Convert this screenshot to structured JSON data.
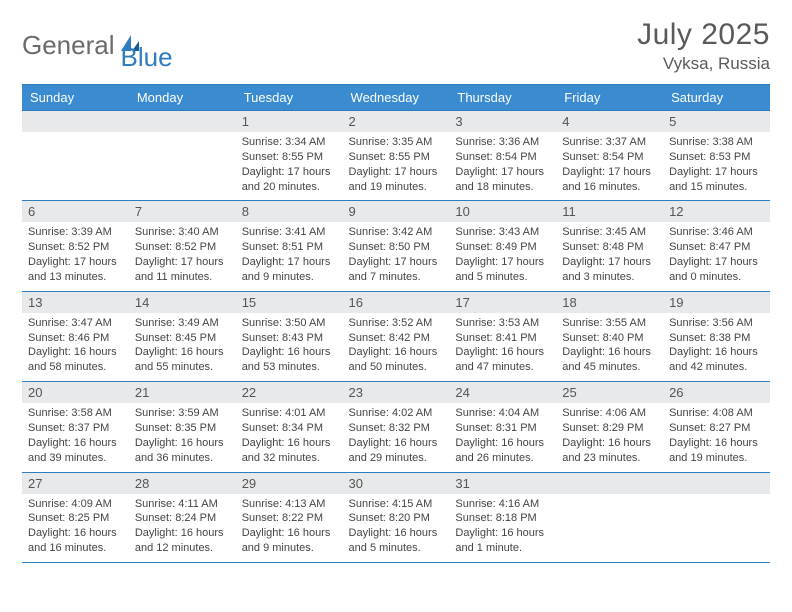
{
  "brand": {
    "part1": "General",
    "part2": "Blue"
  },
  "title": "July 2025",
  "location": "Vyksa, Russia",
  "colors": {
    "header_bg": "#3b8bd0",
    "border": "#2f7dc0",
    "daynum_bg": "#e8e9ea",
    "text": "#3a3a3a",
    "logo_gray": "#6b6b6b",
    "logo_blue": "#2f7dc0"
  },
  "weekdays": [
    "Sunday",
    "Monday",
    "Tuesday",
    "Wednesday",
    "Thursday",
    "Friday",
    "Saturday"
  ],
  "weeks": [
    [
      null,
      null,
      {
        "n": "1",
        "sr": "3:34 AM",
        "ss": "8:55 PM",
        "dl": "17 hours and 20 minutes."
      },
      {
        "n": "2",
        "sr": "3:35 AM",
        "ss": "8:55 PM",
        "dl": "17 hours and 19 minutes."
      },
      {
        "n": "3",
        "sr": "3:36 AM",
        "ss": "8:54 PM",
        "dl": "17 hours and 18 minutes."
      },
      {
        "n": "4",
        "sr": "3:37 AM",
        "ss": "8:54 PM",
        "dl": "17 hours and 16 minutes."
      },
      {
        "n": "5",
        "sr": "3:38 AM",
        "ss": "8:53 PM",
        "dl": "17 hours and 15 minutes."
      }
    ],
    [
      {
        "n": "6",
        "sr": "3:39 AM",
        "ss": "8:52 PM",
        "dl": "17 hours and 13 minutes."
      },
      {
        "n": "7",
        "sr": "3:40 AM",
        "ss": "8:52 PM",
        "dl": "17 hours and 11 minutes."
      },
      {
        "n": "8",
        "sr": "3:41 AM",
        "ss": "8:51 PM",
        "dl": "17 hours and 9 minutes."
      },
      {
        "n": "9",
        "sr": "3:42 AM",
        "ss": "8:50 PM",
        "dl": "17 hours and 7 minutes."
      },
      {
        "n": "10",
        "sr": "3:43 AM",
        "ss": "8:49 PM",
        "dl": "17 hours and 5 minutes."
      },
      {
        "n": "11",
        "sr": "3:45 AM",
        "ss": "8:48 PM",
        "dl": "17 hours and 3 minutes."
      },
      {
        "n": "12",
        "sr": "3:46 AM",
        "ss": "8:47 PM",
        "dl": "17 hours and 0 minutes."
      }
    ],
    [
      {
        "n": "13",
        "sr": "3:47 AM",
        "ss": "8:46 PM",
        "dl": "16 hours and 58 minutes."
      },
      {
        "n": "14",
        "sr": "3:49 AM",
        "ss": "8:45 PM",
        "dl": "16 hours and 55 minutes."
      },
      {
        "n": "15",
        "sr": "3:50 AM",
        "ss": "8:43 PM",
        "dl": "16 hours and 53 minutes."
      },
      {
        "n": "16",
        "sr": "3:52 AM",
        "ss": "8:42 PM",
        "dl": "16 hours and 50 minutes."
      },
      {
        "n": "17",
        "sr": "3:53 AM",
        "ss": "8:41 PM",
        "dl": "16 hours and 47 minutes."
      },
      {
        "n": "18",
        "sr": "3:55 AM",
        "ss": "8:40 PM",
        "dl": "16 hours and 45 minutes."
      },
      {
        "n": "19",
        "sr": "3:56 AM",
        "ss": "8:38 PM",
        "dl": "16 hours and 42 minutes."
      }
    ],
    [
      {
        "n": "20",
        "sr": "3:58 AM",
        "ss": "8:37 PM",
        "dl": "16 hours and 39 minutes."
      },
      {
        "n": "21",
        "sr": "3:59 AM",
        "ss": "8:35 PM",
        "dl": "16 hours and 36 minutes."
      },
      {
        "n": "22",
        "sr": "4:01 AM",
        "ss": "8:34 PM",
        "dl": "16 hours and 32 minutes."
      },
      {
        "n": "23",
        "sr": "4:02 AM",
        "ss": "8:32 PM",
        "dl": "16 hours and 29 minutes."
      },
      {
        "n": "24",
        "sr": "4:04 AM",
        "ss": "8:31 PM",
        "dl": "16 hours and 26 minutes."
      },
      {
        "n": "25",
        "sr": "4:06 AM",
        "ss": "8:29 PM",
        "dl": "16 hours and 23 minutes."
      },
      {
        "n": "26",
        "sr": "4:08 AM",
        "ss": "8:27 PM",
        "dl": "16 hours and 19 minutes."
      }
    ],
    [
      {
        "n": "27",
        "sr": "4:09 AM",
        "ss": "8:25 PM",
        "dl": "16 hours and 16 minutes."
      },
      {
        "n": "28",
        "sr": "4:11 AM",
        "ss": "8:24 PM",
        "dl": "16 hours and 12 minutes."
      },
      {
        "n": "29",
        "sr": "4:13 AM",
        "ss": "8:22 PM",
        "dl": "16 hours and 9 minutes."
      },
      {
        "n": "30",
        "sr": "4:15 AM",
        "ss": "8:20 PM",
        "dl": "16 hours and 5 minutes."
      },
      {
        "n": "31",
        "sr": "4:16 AM",
        "ss": "8:18 PM",
        "dl": "16 hours and 1 minute."
      },
      null,
      null
    ]
  ],
  "labels": {
    "sunrise": "Sunrise: ",
    "sunset": "Sunset: ",
    "daylight": "Daylight: "
  }
}
